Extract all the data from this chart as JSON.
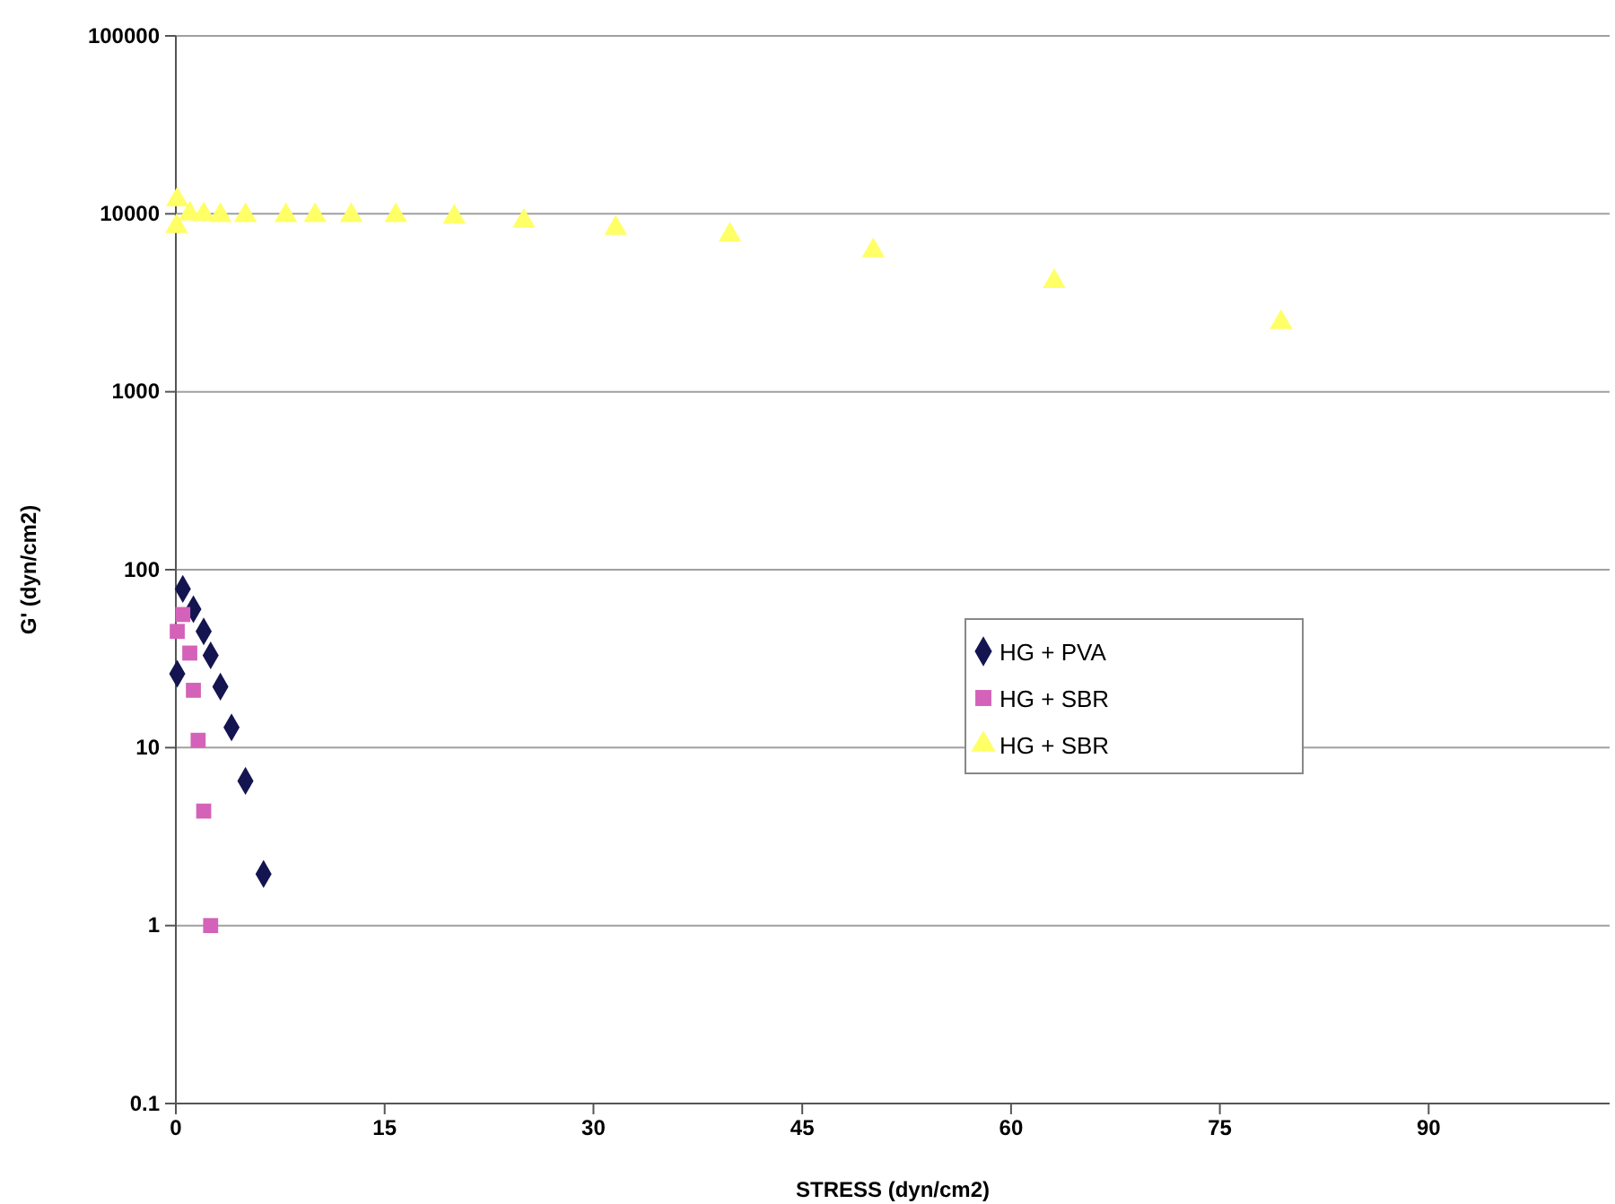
{
  "chart_data": {
    "type": "scatter",
    "xlabel": "STRESS (dyn/cm2)",
    "ylabel": "G' (dyn/cm2)",
    "log": "y",
    "grid": "y",
    "legend": "right",
    "xlim": [
      0,
      103
    ],
    "xticks": [
      0,
      15,
      30,
      45,
      60,
      75,
      90
    ],
    "ylim": [
      0.1,
      100000
    ],
    "yticks": [
      0.1,
      1,
      10,
      100,
      1000,
      10000,
      100000
    ],
    "series": [
      {
        "name": "HG + PVA",
        "color": "#141450",
        "marker": "diamond",
        "x": [
          0.1,
          0.5,
          1.26,
          2,
          2.5,
          3.2,
          4,
          5,
          6.3
        ],
        "values": [
          26,
          78,
          60,
          45,
          33,
          22,
          13,
          6.5,
          1.95
        ]
      },
      {
        "name": "HG + SBR",
        "color": "#d462b8",
        "marker": "square",
        "x": [
          0.1,
          0.5,
          1,
          1.26,
          1.6,
          2,
          2.5
        ],
        "values": [
          45,
          56,
          34,
          21,
          11,
          4.4,
          1
        ]
      },
      {
        "name": "HG + SBR",
        "color": "#ffff66",
        "marker": "triangle",
        "x": [
          0.05,
          0.1,
          1,
          2,
          3.2,
          5,
          7.9,
          10,
          12.6,
          15.8,
          20,
          25,
          31.6,
          39.8,
          50.1,
          63.1,
          79.4
        ],
        "values": [
          8500,
          12000,
          10000,
          9900,
          9800,
          9800,
          9800,
          9800,
          9800,
          9800,
          9600,
          9100,
          8300,
          7600,
          6200,
          4170,
          2450
        ]
      }
    ]
  }
}
